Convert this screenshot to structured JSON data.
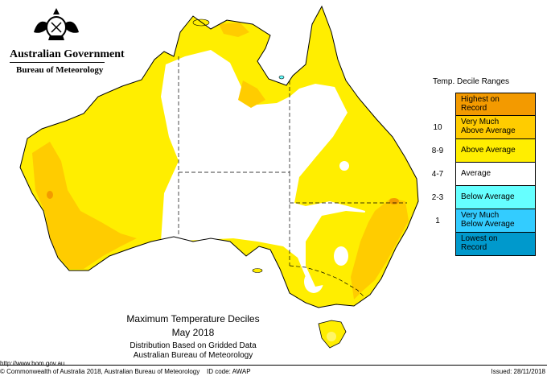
{
  "header": {
    "government": "Australian Government",
    "bureau": "Bureau of Meteorology"
  },
  "legend": {
    "title": "Temp. Decile Ranges",
    "items": [
      {
        "range": "",
        "label": [
          "Highest on",
          "Record"
        ],
        "color": "#F39A00"
      },
      {
        "range": "10",
        "label": [
          "Very Much",
          "Above Average"
        ],
        "color": "#FFCC00"
      },
      {
        "range": "8-9",
        "label": [
          "Above Average"
        ],
        "color": "#FFEE00"
      },
      {
        "range": "4-7",
        "label": [
          "Average"
        ],
        "color": "#FFFFFF"
      },
      {
        "range": "2-3",
        "label": [
          "Below Average"
        ],
        "color": "#66FFFF"
      },
      {
        "range": "1",
        "label": [
          "Very Much",
          "Below Average"
        ],
        "color": "#33CCFF"
      },
      {
        "range": "",
        "label": [
          "Lowest on",
          "Record"
        ],
        "color": "#0099CC"
      }
    ]
  },
  "map_title": {
    "line1": "Maximum Temperature Deciles",
    "line2": "May 2018",
    "line3": "Distribution Based on Gridded Data",
    "line4": "Australian Bureau of Meteorology"
  },
  "url": "http://www.bom.gov.au",
  "footer": {
    "copyright": "© Commonwealth of Australia 2018, Australian Bureau of Meteorology",
    "id_code": "ID code: AWAP",
    "issued": "Issued: 28/11/2018"
  },
  "colors": {
    "above_average": "#FFEE00",
    "very_much_above": "#FFCC00",
    "highest_on_record": "#F39A00",
    "average": "#FFFFFF",
    "outline": "#000000"
  }
}
